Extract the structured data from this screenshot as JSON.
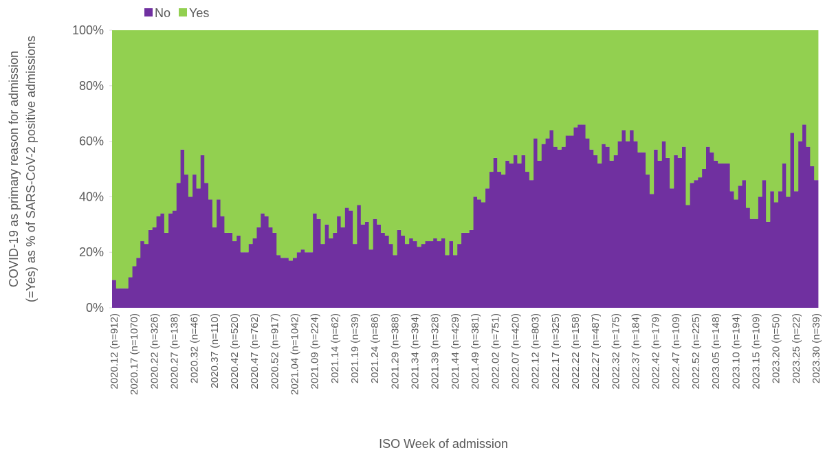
{
  "chart_data": {
    "type": "stacked_bar_100",
    "x_label": "ISO Week of admission",
    "y_label": [
      "COVID-19 as primary reason for admission",
      "(=Yes) as % of SARS-CoV-2 positive admissions"
    ],
    "categories": [
      "2020.12 (n=912)",
      null,
      null,
      null,
      null,
      "2020.17 (n=1070)",
      null,
      null,
      null,
      null,
      "2020.22 (n=326)",
      null,
      null,
      null,
      null,
      "2020.27 (n=138)",
      null,
      null,
      null,
      null,
      "2020.32 (n=46)",
      null,
      null,
      null,
      null,
      "2020.37 (n=110)",
      null,
      null,
      null,
      null,
      "2020.42 (n=520)",
      null,
      null,
      null,
      null,
      "2020.47 (n=762)",
      null,
      null,
      null,
      null,
      "2020.52 (n=917)",
      null,
      null,
      null,
      null,
      "2021.04 (n=1042)",
      null,
      null,
      null,
      null,
      "2021.09 (n=224)",
      null,
      null,
      null,
      null,
      "2021.14 (n=62)",
      null,
      null,
      null,
      null,
      "2021.19 (n=39)",
      null,
      null,
      null,
      null,
      "2021.24 (n=86)",
      null,
      null,
      null,
      null,
      "2021.29 (n=388)",
      null,
      null,
      null,
      null,
      "2021.34 (n=394)",
      null,
      null,
      null,
      null,
      "2021.39 (n=328)",
      null,
      null,
      null,
      null,
      "2021.44 (n=429)",
      null,
      null,
      null,
      null,
      "2021.49 (n=381)",
      null,
      null,
      null,
      null,
      "2022.02 (n=751)",
      null,
      null,
      null,
      null,
      "2022.07 (n=420)",
      null,
      null,
      null,
      null,
      "2022.12 (n=803)",
      null,
      null,
      null,
      null,
      "2022.17 (n=325)",
      null,
      null,
      null,
      null,
      "2022.22 (n=158)",
      null,
      null,
      null,
      null,
      "2022.27 (n=487)",
      null,
      null,
      null,
      null,
      "2022.32 (n=175)",
      null,
      null,
      null,
      null,
      "2022.37 (n=184)",
      null,
      null,
      null,
      null,
      "2022.42 (n=179)",
      null,
      null,
      null,
      null,
      "2022.47 (n=109)",
      null,
      null,
      null,
      null,
      "2022.52 (n=225)",
      null,
      null,
      null,
      null,
      "2023.05 (n=148)",
      null,
      null,
      null,
      null,
      "2023.10 (n=194)",
      null,
      null,
      null,
      null,
      "2023.15 (n=109)",
      null,
      null,
      null,
      null,
      "2023.20 (n=50)",
      null,
      null,
      null,
      null,
      "2023.25 (n=22)",
      null,
      null,
      null,
      null,
      "2023.30 (n=39)"
    ],
    "series": [
      {
        "name": "No",
        "color": "#7030a0",
        "values": [
          10,
          7,
          7,
          7,
          11,
          15,
          18,
          24,
          23,
          28,
          29,
          33,
          34,
          27,
          34,
          35,
          45,
          57,
          48,
          40,
          48,
          43,
          55,
          45,
          39,
          29,
          39,
          33,
          27,
          27,
          24,
          26,
          20,
          20,
          23,
          25,
          29,
          34,
          33,
          29,
          27,
          19,
          18,
          18,
          17,
          18,
          20,
          21,
          20,
          20,
          34,
          32,
          23,
          30,
          25,
          27,
          33,
          29,
          36,
          35,
          23,
          37,
          30,
          31,
          21,
          32,
          30,
          27,
          26,
          23,
          19,
          28,
          26,
          23,
          25,
          24,
          22,
          23,
          24,
          24,
          25,
          24,
          25,
          19,
          24,
          19,
          23,
          27,
          27,
          28,
          40,
          39,
          38,
          43,
          49,
          54,
          49,
          48,
          53,
          52,
          55,
          52,
          55,
          49,
          46,
          61,
          53,
          59,
          61,
          64,
          58,
          57,
          58,
          62,
          62,
          65,
          66,
          66,
          61,
          57,
          55,
          52,
          59,
          58,
          53,
          55,
          60,
          64,
          60,
          64,
          60,
          56,
          56,
          48,
          41,
          57,
          53,
          60,
          54,
          43,
          55,
          54,
          58,
          37,
          45,
          46,
          47,
          50,
          58,
          56,
          53,
          52,
          52,
          52,
          42,
          39,
          44,
          46,
          36,
          32,
          32,
          40,
          46,
          31,
          42,
          38,
          42,
          52,
          40,
          63,
          42,
          60,
          66,
          58,
          51,
          46
        ]
      },
      {
        "name": "Yes",
        "color": "#92d050",
        "values": [
          90,
          93,
          93,
          93,
          89,
          85,
          82,
          76,
          77,
          72,
          71,
          67,
          66,
          73,
          66,
          65,
          55,
          43,
          52,
          60,
          52,
          57,
          45,
          55,
          61,
          71,
          61,
          67,
          73,
          73,
          76,
          74,
          80,
          80,
          77,
          75,
          71,
          66,
          67,
          71,
          73,
          81,
          82,
          82,
          83,
          82,
          80,
          79,
          80,
          80,
          66,
          68,
          77,
          70,
          75,
          73,
          67,
          71,
          64,
          65,
          77,
          63,
          70,
          69,
          79,
          68,
          70,
          73,
          74,
          77,
          81,
          72,
          74,
          77,
          75,
          76,
          78,
          77,
          76,
          76,
          75,
          76,
          75,
          81,
          76,
          81,
          77,
          73,
          73,
          72,
          60,
          61,
          62,
          57,
          51,
          46,
          51,
          52,
          47,
          48,
          45,
          48,
          45,
          51,
          54,
          39,
          47,
          41,
          39,
          36,
          42,
          43,
          42,
          38,
          38,
          35,
          34,
          34,
          39,
          43,
          45,
          48,
          41,
          42,
          47,
          45,
          40,
          36,
          40,
          36,
          40,
          44,
          44,
          52,
          59,
          43,
          47,
          40,
          46,
          57,
          45,
          46,
          42,
          63,
          55,
          54,
          53,
          50,
          42,
          44,
          47,
          48,
          48,
          48,
          58,
          61,
          56,
          54,
          64,
          68,
          68,
          60,
          54,
          69,
          58,
          62,
          58,
          48,
          60,
          37,
          58,
          40,
          34,
          42,
          49,
          54
        ]
      }
    ],
    "ylim": [
      0,
      100
    ],
    "yticks": [
      {
        "value": 0,
        "label": "0%"
      },
      {
        "value": 20,
        "label": "20%"
      },
      {
        "value": 40,
        "label": "40%"
      },
      {
        "value": 60,
        "label": "60%"
      },
      {
        "value": 80,
        "label": "80%"
      },
      {
        "value": 100,
        "label": "100%"
      }
    ],
    "legend": "top-left"
  }
}
